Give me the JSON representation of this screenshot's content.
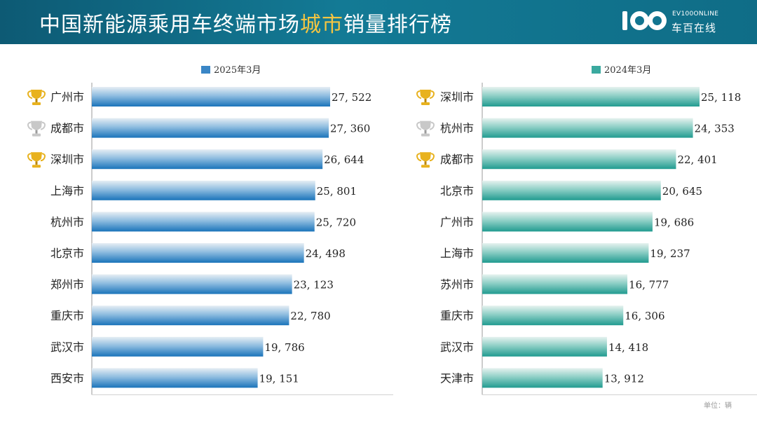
{
  "header": {
    "title_part1": "中国新能源乘用车终端市场",
    "title_highlight": "城市",
    "title_part2": "销量排行榜",
    "logo_text_en": "EV100ONLINE",
    "logo_text_cn": "车百在线"
  },
  "unit_label": "单位：辆",
  "colors": {
    "header_bg": "#0f6d87",
    "title_highlight": "#f4c542",
    "bar_blue": "#1c79c0",
    "bar_teal": "#2ea59a",
    "trophy_gold": "#e8b21e",
    "trophy_silver": "#c8c8c8"
  },
  "chart_data": [
    {
      "type": "bar",
      "orientation": "horizontal",
      "legend": "2025年3月",
      "legend_position": "top-center",
      "color": "#1c79c0",
      "categories": [
        "广州市",
        "成都市",
        "深圳市",
        "上海市",
        "杭州市",
        "北京市",
        "郑州市",
        "重庆市",
        "武汉市",
        "西安市"
      ],
      "values": [
        27522,
        27360,
        26644,
        25801,
        25720,
        24498,
        23123,
        22780,
        19786,
        19151
      ],
      "value_labels": [
        "27, 522",
        "27, 360",
        "26, 644",
        "25, 801",
        "25, 720",
        "24, 498",
        "23, 123",
        "22, 780",
        "19, 786",
        "19, 151"
      ],
      "trophies": [
        "gold",
        "silver",
        "gold"
      ],
      "xlim": [
        0,
        30000
      ]
    },
    {
      "type": "bar",
      "orientation": "horizontal",
      "legend": "2024年3月",
      "legend_position": "top-center",
      "color": "#2ea59a",
      "categories": [
        "深圳市",
        "杭州市",
        "成都市",
        "北京市",
        "广州市",
        "上海市",
        "苏州市",
        "重庆市",
        "武汉市",
        "天津市"
      ],
      "values": [
        25118,
        24353,
        22401,
        20645,
        19686,
        19237,
        16777,
        16306,
        14418,
        13912
      ],
      "value_labels": [
        "25, 118",
        "24, 353",
        "22, 401",
        "20, 645",
        "19, 686",
        "19, 237",
        "16, 777",
        "16, 306",
        "14, 418",
        "13, 912"
      ],
      "trophies": [
        "gold",
        "silver",
        "gold"
      ],
      "xlim": [
        0,
        30000
      ]
    }
  ]
}
